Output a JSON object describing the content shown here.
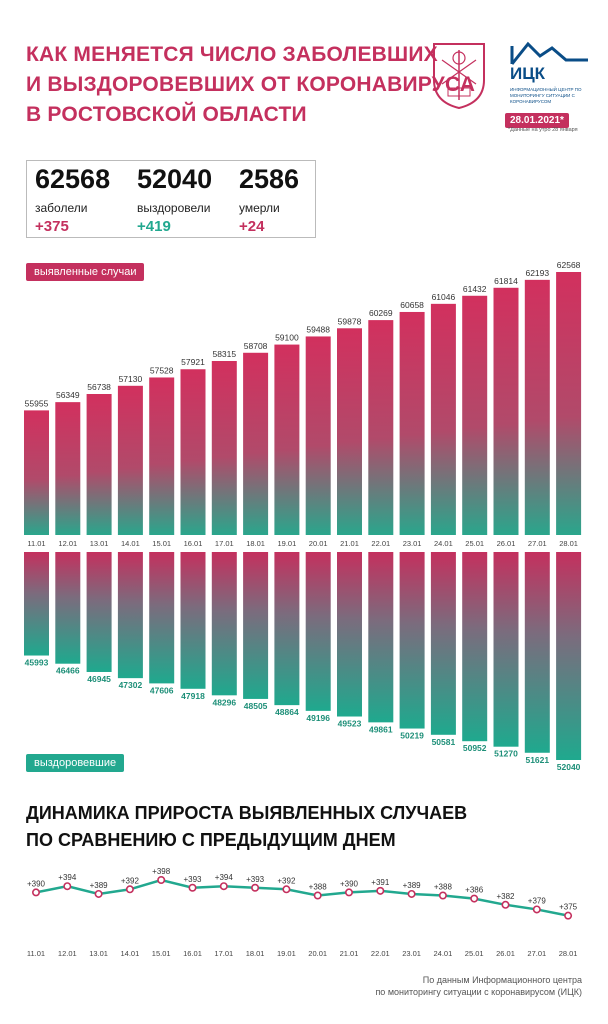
{
  "header": {
    "title_lines": [
      "Как меняется число заболевших",
      "и выздоровевших от коронавируса",
      "в Ростовской области"
    ],
    "logo_text": "ИЦК",
    "logo_sub": "ИНФОРМАЦИОННЫЙ ЦЕНТР ПО МОНИТОРИНГУ СИТУАЦИИ С КОРОНАВИРУСОМ",
    "date": "28.01.2021*",
    "date_note": "*Данные на утро 28 января"
  },
  "stats": [
    {
      "value": "62568",
      "label": "заболели",
      "delta": "+375",
      "color": "#c4305e"
    },
    {
      "value": "52040",
      "label": "выздоровели",
      "delta": "+419",
      "color": "#22a88f"
    },
    {
      "value": "2586",
      "label": "умерли",
      "delta": "+24",
      "color": "#c4305e"
    }
  ],
  "colors": {
    "pink": "#c4305e",
    "teal": "#22a88f"
  },
  "chart_data": [
    {
      "type": "bar",
      "series_label": "выявленные случаи",
      "categories": [
        "11.01",
        "12.01",
        "13.01",
        "14.01",
        "15.01",
        "16.01",
        "17.01",
        "18.01",
        "19.01",
        "20.01",
        "21.01",
        "22.01",
        "23.01",
        "24.01",
        "25.01",
        "26.01",
        "27.01",
        "28.01"
      ],
      "values": [
        55955,
        56349,
        56738,
        57130,
        57528,
        57921,
        58315,
        58708,
        59100,
        59488,
        59878,
        60269,
        60658,
        61046,
        61432,
        61814,
        62193,
        62568
      ]
    },
    {
      "type": "bar",
      "series_label": "выздоровевшие",
      "categories": [
        "11.01",
        "12.01",
        "13.01",
        "14.01",
        "15.01",
        "16.01",
        "17.01",
        "18.01",
        "19.01",
        "20.01",
        "21.01",
        "22.01",
        "23.01",
        "24.01",
        "25.01",
        "26.01",
        "27.01",
        "28.01"
      ],
      "values": [
        45993,
        46466,
        46945,
        47302,
        47606,
        47918,
        48296,
        48505,
        48864,
        49196,
        49523,
        49861,
        50219,
        50581,
        50952,
        51270,
        51621,
        52040
      ]
    },
    {
      "type": "line",
      "title_lines": [
        "Динамика прироста выявленных случаев",
        "по сравнению с предыдущим днем"
      ],
      "categories": [
        "11.01",
        "12.01",
        "13.01",
        "14.01",
        "15.01",
        "16.01",
        "17.01",
        "18.01",
        "19.01",
        "20.01",
        "21.01",
        "22.01",
        "23.01",
        "24.01",
        "25.01",
        "26.01",
        "27.01",
        "28.01"
      ],
      "values": [
        390,
        394,
        389,
        392,
        398,
        393,
        394,
        393,
        392,
        388,
        390,
        391,
        389,
        388,
        386,
        382,
        379,
        375
      ],
      "labels": [
        "+390",
        "+394",
        "+389",
        "+392",
        "+398",
        "+393",
        "+394",
        "+393",
        "+392",
        "+388",
        "+390",
        "+391",
        "+389",
        "+388",
        "+386",
        "+382",
        "+379",
        "+375"
      ]
    }
  ],
  "source_lines": [
    "По данным Информационного центра",
    "по мониторингу ситуации с коронавирусом (ИЦК)"
  ]
}
